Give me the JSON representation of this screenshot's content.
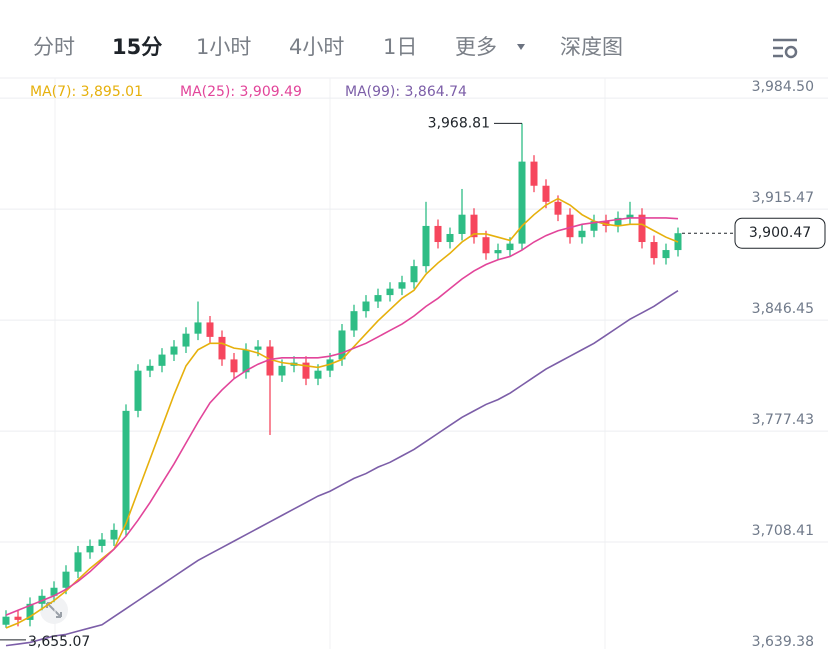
{
  "tabs": [
    "分时",
    "15分",
    "1小时",
    "4小时",
    "1日",
    "更多",
    "深度图"
  ],
  "active_tab": 1,
  "chart_data": {
    "type": "candlestick",
    "ylim": [
      3636,
      3997
    ],
    "yticks": [
      {
        "value": 3984.5,
        "label": "3,984.50"
      },
      {
        "value": 3915.47,
        "label": "3,915.47"
      },
      {
        "value": 3846.45,
        "label": "3,846.45"
      },
      {
        "value": 3777.43,
        "label": "3,777.43"
      },
      {
        "value": 3708.41,
        "label": "3,708.41"
      },
      {
        "value": 3639.38,
        "label": "3,639.38"
      }
    ],
    "grid": true,
    "up_color": "#2ebd85",
    "down_color": "#f6465d",
    "candles": {
      "open": [
        3657,
        3662,
        3660,
        3670,
        3675,
        3680,
        3690,
        3702,
        3706,
        3710,
        3716,
        3790,
        3815,
        3818,
        3825,
        3830,
        3838,
        3845,
        3836,
        3822,
        3814,
        3828,
        3830,
        3812,
        3818,
        3820,
        3810,
        3815,
        3822,
        3840,
        3852,
        3858,
        3862,
        3866,
        3870,
        3880,
        3905,
        3895,
        3900,
        3912,
        3898,
        3888,
        3890,
        3894,
        3945,
        3930,
        3920,
        3912,
        3898,
        3902,
        3908,
        3905,
        3910,
        3912,
        3895,
        3885,
        3890
      ],
      "high": [
        3666,
        3666,
        3674,
        3679,
        3684,
        3694,
        3706,
        3710,
        3714,
        3720,
        3794,
        3819,
        3822,
        3829,
        3834,
        3842,
        3858,
        3849,
        3840,
        3826,
        3832,
        3834,
        3834,
        3822,
        3824,
        3824,
        3819,
        3826,
        3844,
        3856,
        3862,
        3866,
        3870,
        3874,
        3884,
        3920,
        3909,
        3904,
        3928,
        3916,
        3902,
        3894,
        3898,
        3968.81,
        3949,
        3934,
        3924,
        3916,
        3906,
        3912,
        3912,
        3914,
        3920,
        3916,
        3899,
        3894,
        3904
      ],
      "low": [
        3655.07,
        3656,
        3656,
        3666,
        3671,
        3676,
        3686,
        3698,
        3702,
        3706,
        3712,
        3786,
        3811,
        3814,
        3821,
        3826,
        3834,
        3832,
        3818,
        3810,
        3810,
        3824,
        3775,
        3808,
        3814,
        3806,
        3806,
        3811,
        3818,
        3836,
        3848,
        3854,
        3858,
        3862,
        3866,
        3876,
        3891,
        3891,
        3896,
        3894,
        3884,
        3884,
        3886,
        3890,
        3926,
        3916,
        3908,
        3894,
        3894,
        3898,
        3901,
        3901,
        3906,
        3891,
        3881,
        3881,
        3886
      ],
      "close": [
        3662,
        3660,
        3670,
        3675,
        3680,
        3690,
        3702,
        3706,
        3710,
        3716,
        3790,
        3815,
        3818,
        3825,
        3830,
        3838,
        3845,
        3836,
        3822,
        3814,
        3828,
        3830,
        3812,
        3818,
        3820,
        3810,
        3815,
        3822,
        3840,
        3852,
        3858,
        3862,
        3866,
        3870,
        3880,
        3905,
        3895,
        3900,
        3912,
        3898,
        3888,
        3890,
        3894,
        3945,
        3930,
        3920,
        3912,
        3898,
        3902,
        3908,
        3905,
        3910,
        3912,
        3895,
        3885,
        3890,
        3900.47
      ]
    },
    "series": [
      {
        "name": "MA(7)",
        "legend": "MA(7): 3,895.01",
        "color": "#e6b00c",
        "values": [
          3655,
          3658,
          3662,
          3667,
          3672,
          3678,
          3685,
          3692,
          3698,
          3704,
          3720,
          3740,
          3760,
          3780,
          3800,
          3818,
          3828,
          3832,
          3832,
          3829,
          3828,
          3826,
          3822,
          3820,
          3819,
          3818,
          3817,
          3819,
          3822,
          3830,
          3838,
          3846,
          3853,
          3860,
          3865,
          3875,
          3882,
          3888,
          3895,
          3900,
          3900,
          3898,
          3896,
          3905,
          3912,
          3918,
          3922,
          3918,
          3912,
          3908,
          3906,
          3905,
          3906,
          3906,
          3902,
          3898,
          3895.01
        ]
      },
      {
        "name": "MA(25)",
        "legend": "MA(25): 3,909.49",
        "color": "#e2459a",
        "values": [
          3663,
          3666,
          3669,
          3672,
          3675,
          3679,
          3684,
          3690,
          3697,
          3704,
          3712,
          3722,
          3733,
          3745,
          3757,
          3770,
          3783,
          3795,
          3803,
          3810,
          3815,
          3819,
          3822,
          3823,
          3823,
          3823,
          3823,
          3824,
          3826,
          3829,
          3832,
          3836,
          3840,
          3844,
          3849,
          3855,
          3860,
          3866,
          3872,
          3877,
          3881,
          3884,
          3886,
          3890,
          3895,
          3899,
          3902,
          3904,
          3906,
          3907,
          3908,
          3909,
          3910,
          3910,
          3910,
          3910,
          3909.49
        ]
      },
      {
        "name": "MA(99)",
        "legend": "MA(99): 3,864.74",
        "color": "#7c5ea8",
        "values": [
          3644,
          3645,
          3646,
          3648,
          3650,
          3651,
          3653,
          3655,
          3657,
          3662,
          3667,
          3672,
          3677,
          3682,
          3687,
          3692,
          3697,
          3701,
          3705,
          3709,
          3713,
          3717,
          3721,
          3725,
          3729,
          3733,
          3737,
          3740,
          3744,
          3748,
          3751,
          3755,
          3758,
          3762,
          3766,
          3771,
          3776,
          3781,
          3786,
          3790,
          3794,
          3797,
          3801,
          3806,
          3811,
          3816,
          3820,
          3824,
          3828,
          3832,
          3837,
          3842,
          3847,
          3851,
          3855,
          3860,
          3864.74
        ]
      }
    ],
    "annotations": {
      "max": {
        "value": 3968.81,
        "label": "3,968.81"
      },
      "min": {
        "value": 3655.07,
        "label": "3,655.07"
      },
      "last": {
        "value": 3900.47,
        "label": "3,900.47"
      }
    }
  }
}
